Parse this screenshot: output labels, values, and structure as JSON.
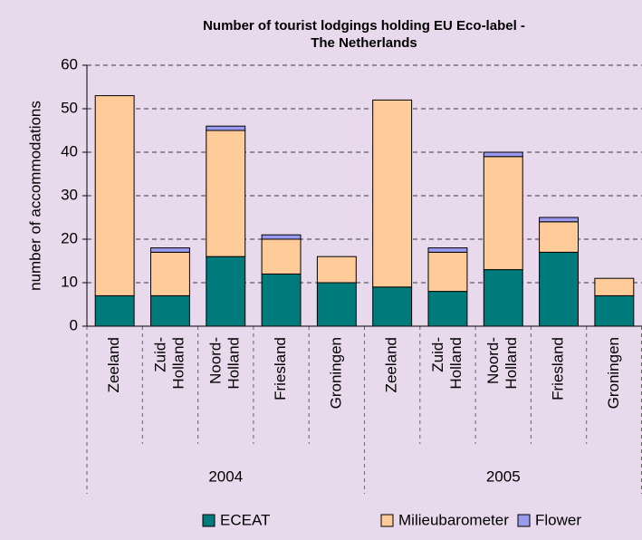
{
  "chart_data": {
    "type": "stacked-bar",
    "title": [
      "Number of tourist lodgings holding EU Eco-label -",
      "The Netherlands"
    ],
    "y_label": "number of accommodations",
    "groups": [
      {
        "name": "2004",
        "categories": [
          [
            "Zeeland"
          ],
          [
            "Zuid-",
            "Holland"
          ],
          [
            "Noord-",
            "Holland"
          ],
          [
            "Friesland"
          ],
          [
            "Groningen"
          ]
        ]
      },
      {
        "name": "2005",
        "categories": [
          [
            "Zeeland"
          ],
          [
            "Zuid-",
            "Holland"
          ],
          [
            "Noord-",
            "Holland"
          ],
          [
            "Friesland"
          ],
          [
            "Groningen"
          ]
        ]
      }
    ],
    "series": [
      {
        "name": "ECEAT",
        "color": "#007b7b",
        "values": [
          7,
          7,
          16,
          12,
          10,
          9,
          8,
          13,
          17,
          7
        ]
      },
      {
        "name": "Milieubarometer",
        "color": "#ffcc99",
        "values": [
          46,
          10,
          29,
          8,
          6,
          43,
          9,
          26,
          7,
          4
        ]
      },
      {
        "name": "Flower",
        "color": "#9999ee",
        "values": [
          0,
          1,
          1,
          1,
          0,
          0,
          1,
          1,
          1,
          0
        ]
      }
    ],
    "ylim": [
      0,
      60
    ],
    "yticks": [
      0,
      10,
      20,
      30,
      40,
      50,
      60
    ],
    "grid": true,
    "legend": "bottom"
  }
}
